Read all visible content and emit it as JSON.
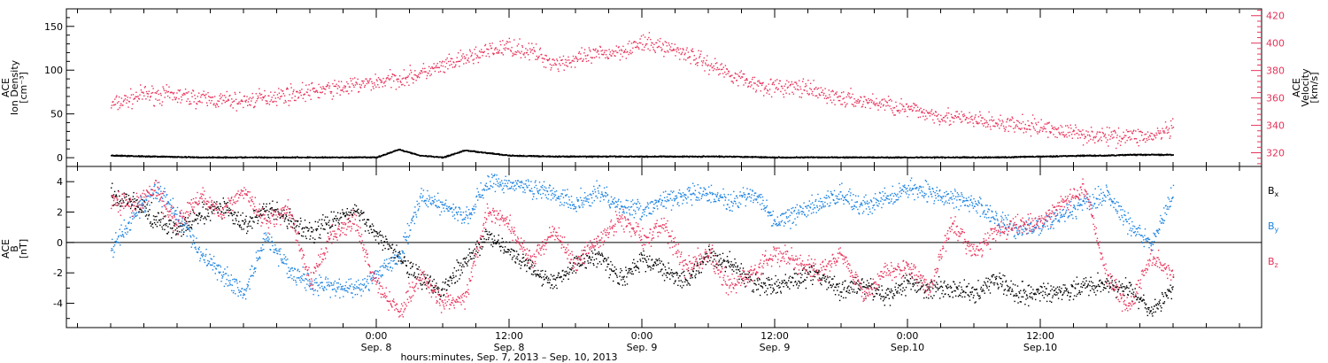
{
  "chart_data": [
    {
      "type": "scatter",
      "panel": "top",
      "ylabel_lines": [
        "ACE",
        "Ion Density",
        "[cm⁻³]"
      ],
      "ylabel_right_lines": [
        "ACE",
        "Velocity",
        "[km/s]"
      ],
      "ylim": [
        -10,
        170
      ],
      "yticks": [
        0,
        50,
        100,
        150
      ],
      "ylim_right": [
        310,
        425
      ],
      "yticks_right": [
        320,
        340,
        360,
        380,
        400,
        420
      ],
      "colors": {
        "density": "#000000",
        "velocity": "#e8325a"
      },
      "series": [
        {
          "axis": "left",
          "x_hours": [
            0,
            4,
            8,
            12,
            16,
            20,
            24,
            26,
            28,
            30,
            32,
            34,
            36,
            40,
            48,
            56,
            60,
            64,
            72,
            76,
            80,
            84,
            88,
            90,
            92,
            94,
            96
          ],
          "y": [
            3,
            2,
            1,
            1,
            1,
            1,
            1,
            10,
            3,
            1,
            9,
            6,
            3,
            2,
            2,
            2,
            1,
            1,
            1,
            1,
            1,
            2,
            3,
            3,
            4,
            4,
            4
          ]
        },
        {
          "axis": "right",
          "x_hours": [
            0,
            3,
            6,
            9,
            12,
            15,
            18,
            21,
            24,
            27,
            30,
            33,
            36,
            38,
            40,
            42,
            44,
            46,
            48,
            50,
            52,
            54,
            56,
            58,
            60,
            62,
            64,
            66,
            68,
            70,
            72,
            74,
            76,
            78,
            80,
            82,
            84,
            86,
            88,
            90,
            92,
            94,
            96
          ],
          "y": [
            355,
            363,
            362,
            359,
            358,
            362,
            365,
            368,
            372,
            376,
            383,
            392,
            398,
            394,
            386,
            388,
            392,
            395,
            400,
            398,
            393,
            385,
            378,
            371,
            368,
            368,
            364,
            360,
            358,
            356,
            352,
            349,
            346,
            344,
            342,
            340,
            339,
            336,
            334,
            332,
            333,
            332,
            338
          ]
        }
      ]
    },
    {
      "type": "scatter",
      "panel": "bottom",
      "ylabel_lines": [
        "ACE",
        "B",
        "[nT]"
      ],
      "ylim": [
        -5.6,
        5.0
      ],
      "yticks": [
        -4,
        -2,
        0,
        2,
        4
      ],
      "zero_line": true,
      "series": [
        {
          "name": "Bx",
          "color": "#000000",
          "x_hours": [
            0,
            2,
            4,
            6,
            8,
            10,
            12,
            14,
            16,
            18,
            20,
            22,
            24,
            26,
            28,
            30,
            32,
            34,
            36,
            38,
            40,
            42,
            44,
            46,
            48,
            50,
            52,
            54,
            56,
            58,
            60,
            62,
            64,
            66,
            68,
            70,
            72,
            74,
            76,
            78,
            80,
            82,
            84,
            86,
            88,
            90,
            92,
            94,
            96
          ],
          "y": [
            3.2,
            2.6,
            1.6,
            0.8,
            1.8,
            2.4,
            1.2,
            2.2,
            1.6,
            0.6,
            1.5,
            2.1,
            0.6,
            -0.8,
            -2.3,
            -3.1,
            -1.3,
            0.5,
            -0.6,
            -1.6,
            -2.6,
            -1.3,
            -0.8,
            -2.4,
            -1.1,
            -1.7,
            -2.6,
            -0.8,
            -1.4,
            -2.7,
            -2.8,
            -2.3,
            -2.1,
            -3.1,
            -2.7,
            -3.6,
            -2.5,
            -3.1,
            -2.9,
            -3.3,
            -2.3,
            -3.3,
            -3.3,
            -3.1,
            -2.9,
            -2.7,
            -3.0,
            -4.6,
            -3.0
          ]
        },
        {
          "name": "By",
          "color": "#1a82e0",
          "x_hours": [
            0,
            2,
            4,
            6,
            8,
            10,
            12,
            14,
            16,
            18,
            20,
            22,
            24,
            26,
            28,
            30,
            32,
            34,
            36,
            38,
            40,
            42,
            44,
            46,
            48,
            50,
            52,
            54,
            56,
            58,
            60,
            62,
            64,
            66,
            68,
            70,
            72,
            74,
            76,
            78,
            80,
            82,
            84,
            86,
            88,
            90,
            92,
            94,
            96
          ],
          "y": [
            -0.5,
            1.8,
            3.5,
            2.0,
            -0.6,
            -2.0,
            -3.3,
            0.4,
            -1.6,
            -2.8,
            -2.8,
            -3.1,
            -2.1,
            -1.0,
            3.0,
            2.4,
            1.6,
            4.0,
            3.9,
            3.7,
            3.2,
            2.6,
            3.4,
            2.4,
            2.1,
            2.8,
            3.1,
            3.3,
            2.6,
            3.4,
            1.3,
            2.1,
            2.6,
            3.2,
            2.4,
            2.9,
            3.6,
            3.3,
            3.0,
            2.6,
            1.6,
            0.9,
            1.2,
            1.8,
            2.6,
            3.2,
            1.2,
            -0.1,
            3.3
          ]
        },
        {
          "name": "Bz",
          "color": "#e8325a",
          "x_hours": [
            0,
            2,
            4,
            6,
            8,
            10,
            12,
            14,
            16,
            18,
            20,
            22,
            24,
            26,
            28,
            30,
            32,
            34,
            36,
            38,
            40,
            42,
            44,
            46,
            48,
            50,
            52,
            54,
            56,
            58,
            60,
            62,
            64,
            66,
            68,
            70,
            72,
            74,
            76,
            78,
            80,
            82,
            84,
            86,
            88,
            90,
            92,
            94,
            96
          ],
          "y": [
            2.8,
            2.4,
            3.6,
            1.2,
            3.1,
            2.1,
            3.4,
            1.4,
            2.2,
            -2.6,
            0.6,
            1.5,
            -2.7,
            -4.6,
            -2.2,
            -4.0,
            -3.6,
            2.1,
            1.2,
            -1.3,
            0.8,
            -1.5,
            0.2,
            1.6,
            0.4,
            1.1,
            -1.7,
            -0.6,
            -2.9,
            -1.8,
            -0.8,
            -1.1,
            -1.9,
            -0.6,
            -3.5,
            -1.8,
            -1.6,
            -3.1,
            1.4,
            -0.6,
            0.8,
            1.2,
            1.4,
            2.6,
            3.6,
            -2.2,
            -4.4,
            -0.8,
            -2.0
          ]
        }
      ],
      "legend": [
        "Bx",
        "By",
        "Bz"
      ],
      "legend_placement": "right"
    }
  ],
  "x_axis": {
    "range_hours": [
      -4,
      104
    ],
    "ticks": [
      {
        "hour": 24,
        "time": "0:00",
        "date": "Sep. 8"
      },
      {
        "hour": 36,
        "time": "12:00",
        "date": "Sep. 8"
      },
      {
        "hour": 48,
        "time": "0:00",
        "date": "Sep. 9"
      },
      {
        "hour": 60,
        "time": "12:00",
        "date": "Sep. 9"
      },
      {
        "hour": 72,
        "time": "0:00",
        "date": "Sep.10"
      },
      {
        "hour": 84,
        "time": "12:00",
        "date": "Sep.10"
      }
    ],
    "label": "hours:minutes, Sep.  7, 2013 – Sep. 10, 2013"
  }
}
